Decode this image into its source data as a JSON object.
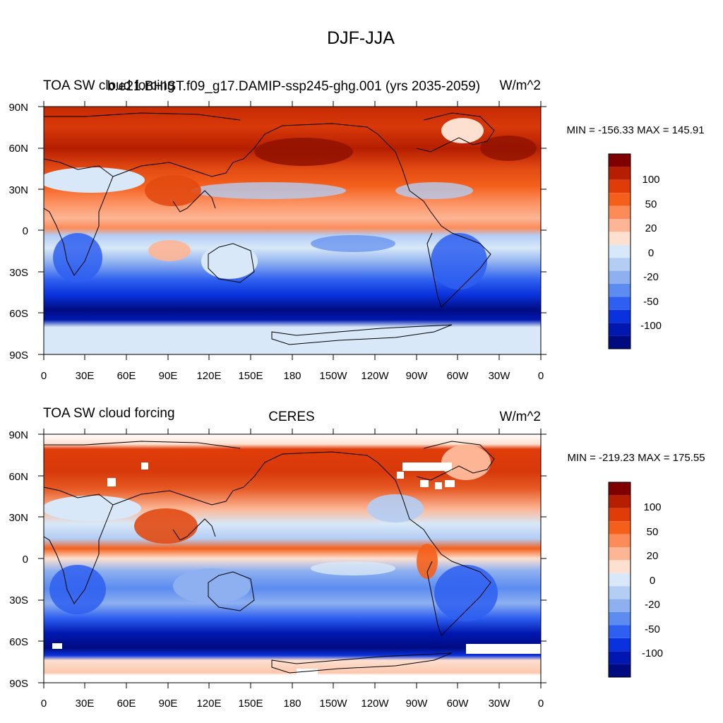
{
  "page": {
    "title": "DJF-JJA"
  },
  "panels": [
    {
      "left_title": "TOA SW cloud forcing",
      "center_title": "b.e21.BHIST.f09_g17.DAMIP-ssp245-ghg.001 (yrs 2035-2059)",
      "units": "W/m^2",
      "minmax": "MIN = -156.33 MAX = 145.91"
    },
    {
      "left_title": "TOA SW cloud forcing",
      "center_title": "CERES",
      "units": "W/m^2",
      "minmax": "MIN = -219.23 MAX = 175.55"
    }
  ],
  "chart_data": {
    "type": "heatmap",
    "projection": "cylindrical-equidistant",
    "field": "TOA SW cloud forcing difference (DJF minus JJA)",
    "units": "W/m^2",
    "x_ticks": [
      "0",
      "30E",
      "60E",
      "90E",
      "120E",
      "150E",
      "180",
      "150W",
      "120W",
      "90W",
      "60W",
      "30W",
      "0"
    ],
    "y_ticks": [
      "90N",
      "60N",
      "30N",
      "0",
      "30S",
      "60S",
      "90S"
    ],
    "xlim": [
      0,
      360
    ],
    "ylim": [
      -90,
      90
    ],
    "colorbar": {
      "levels": [
        "100",
        "50",
        "20",
        "0",
        "-20",
        "-50",
        "-100"
      ],
      "colors": [
        "#7f0000",
        "#b51e00",
        "#e03c0a",
        "#f4601c",
        "#fb8c5a",
        "#fdb595",
        "#fde0d0",
        "#d8e8f8",
        "#b4cdf4",
        "#8eb0f0",
        "#5c8cf0",
        "#2e5ff0",
        "#0a32dc",
        "#0018b0",
        "#000b80"
      ]
    },
    "series": [
      {
        "name": "b.e21.BHIST.f09_g17.DAMIP-ssp245-ghg.001 (yrs 2035-2059)",
        "min": -156.33,
        "max": 145.91,
        "zonal_pattern": [
          {
            "lat": 82,
            "value": 95
          },
          {
            "lat": 65,
            "value": 110
          },
          {
            "lat": 45,
            "value": 75
          },
          {
            "lat": 30,
            "value": 30
          },
          {
            "lat": 15,
            "value": 15
          },
          {
            "lat": 5,
            "value": 10
          },
          {
            "lat": -5,
            "value": -25
          },
          {
            "lat": -15,
            "value": -10
          },
          {
            "lat": -25,
            "value": -30
          },
          {
            "lat": -38,
            "value": -60
          },
          {
            "lat": -50,
            "value": -110
          },
          {
            "lat": -60,
            "value": -140
          },
          {
            "lat": -70,
            "value": -10
          },
          {
            "lat": -85,
            "value": -5
          }
        ]
      },
      {
        "name": "CERES",
        "min": -219.23,
        "max": 175.55,
        "zonal_pattern": [
          {
            "lat": 82,
            "value": 15
          },
          {
            "lat": 70,
            "value": 100
          },
          {
            "lat": 50,
            "value": 85
          },
          {
            "lat": 30,
            "value": 30
          },
          {
            "lat": 15,
            "value": -10
          },
          {
            "lat": 8,
            "value": 60
          },
          {
            "lat": -5,
            "value": -20
          },
          {
            "lat": -15,
            "value": -35
          },
          {
            "lat": -30,
            "value": -25
          },
          {
            "lat": -45,
            "value": -70
          },
          {
            "lat": -60,
            "value": -150
          },
          {
            "lat": -70,
            "value": -130
          },
          {
            "lat": -80,
            "value": 10
          }
        ]
      }
    ]
  }
}
